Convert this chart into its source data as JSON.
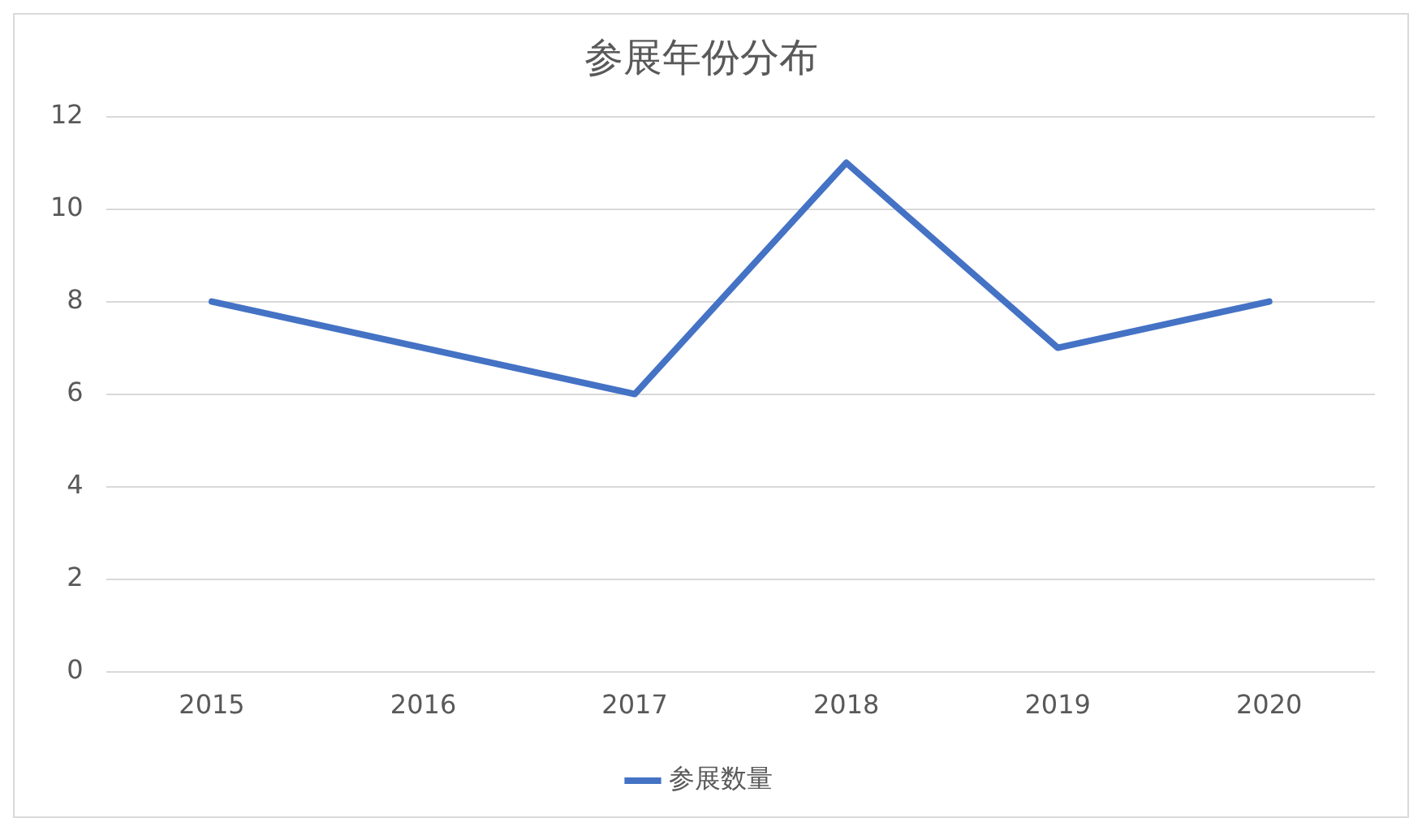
{
  "chart_data": {
    "type": "line",
    "title": "参展年份分布",
    "categories": [
      "2015",
      "2016",
      "2017",
      "2018",
      "2019",
      "2020"
    ],
    "series": [
      {
        "name": "参展数量",
        "color": "#4472c4",
        "values": [
          8,
          7,
          6,
          11,
          7,
          8
        ]
      }
    ],
    "ylim": [
      0,
      12
    ],
    "yticks": [
      0,
      2,
      4,
      6,
      8,
      10,
      12
    ],
    "grid": "y",
    "legend": "bottom",
    "marker": "none",
    "line_style": "solid"
  }
}
